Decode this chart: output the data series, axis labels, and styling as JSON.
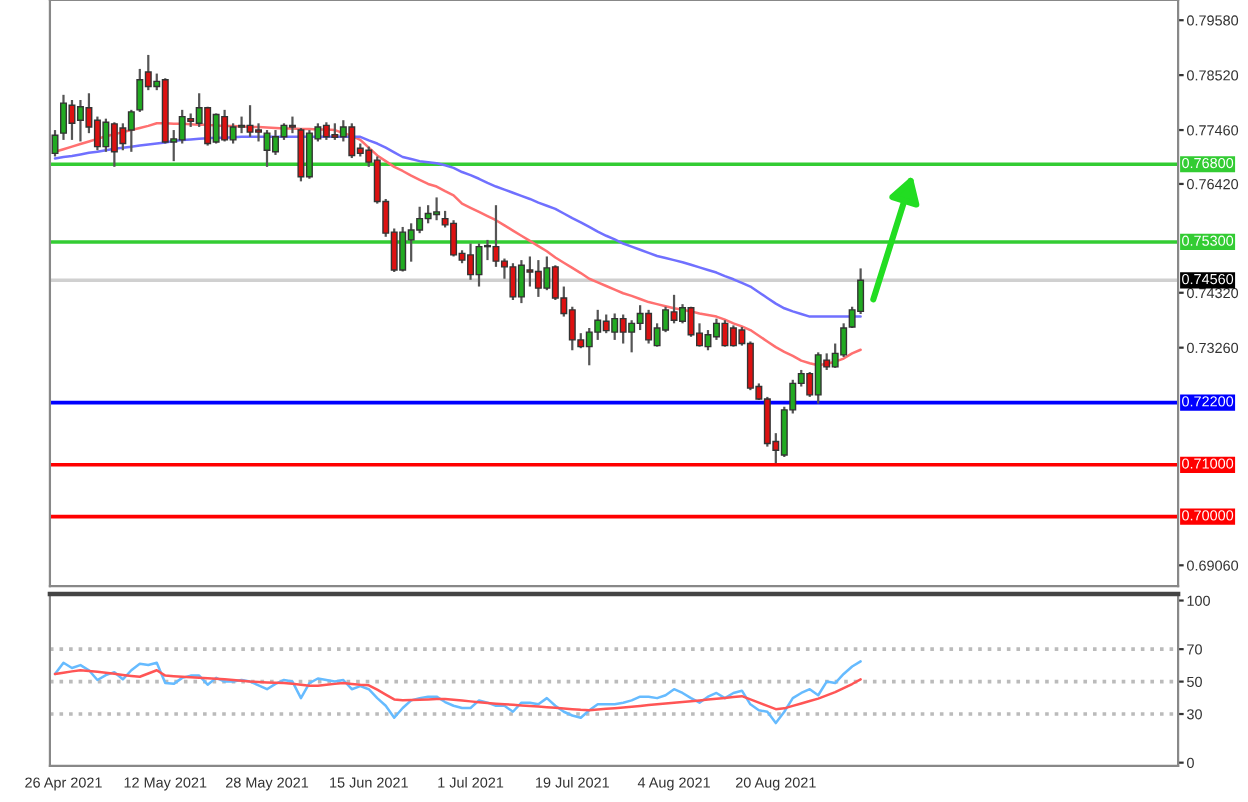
{
  "chart_data": [
    {
      "type": "candlestick",
      "tick_labels": "y",
      "categories": [
        null,
        null,
        null,
        null,
        null,
        null,
        null,
        null,
        null,
        null,
        null,
        null,
        null,
        null,
        null,
        null,
        null,
        null,
        null,
        null,
        null,
        null,
        null,
        null,
        null,
        null,
        null,
        null,
        null,
        null,
        null,
        null,
        null,
        null,
        null,
        null,
        null,
        null,
        null,
        null,
        null,
        null,
        null,
        null,
        null,
        null,
        null,
        null,
        null,
        null,
        null,
        null,
        null,
        null,
        null,
        null,
        null,
        null,
        null,
        null,
        null,
        null,
        null,
        null,
        null,
        null,
        null,
        null,
        null,
        null,
        null,
        null,
        null,
        null,
        null,
        null,
        null,
        null,
        null,
        null,
        null,
        null,
        null,
        null,
        null,
        null,
        null,
        null,
        null,
        null,
        null,
        null,
        null,
        null,
        null,
        null
      ],
      "ohlc": [
        [
          0.7701,
          0.7746,
          0.7695,
          0.7736
        ],
        [
          0.774,
          0.7814,
          0.7727,
          0.7798
        ],
        [
          0.7794,
          0.7804,
          0.7727,
          0.7759
        ],
        [
          0.7765,
          0.7804,
          0.7724,
          0.7791
        ],
        [
          0.7789,
          0.7817,
          0.774,
          0.7752
        ],
        [
          0.7765,
          0.7772,
          0.7707,
          0.7714
        ],
        [
          0.7714,
          0.7768,
          0.7704,
          0.7761
        ],
        [
          0.7758,
          0.7761,
          0.7675,
          0.7704
        ],
        [
          0.775,
          0.7759,
          0.7707,
          0.772
        ],
        [
          0.7746,
          0.7785,
          0.7704,
          0.7781
        ],
        [
          0.7785,
          0.7864,
          0.7781,
          0.7843
        ],
        [
          0.7858,
          0.7891,
          0.7823,
          0.783
        ],
        [
          0.783,
          0.7855,
          0.7823,
          0.784
        ],
        [
          0.7843,
          0.7846,
          0.772,
          0.7723
        ],
        [
          0.7723,
          0.7746,
          0.7686,
          0.7729
        ],
        [
          0.7727,
          0.7785,
          0.772,
          0.7772
        ],
        [
          0.7768,
          0.7778,
          0.7752,
          0.7763
        ],
        [
          0.7759,
          0.7817,
          0.7752,
          0.7789
        ],
        [
          0.7789,
          0.7791,
          0.7716,
          0.772
        ],
        [
          0.7723,
          0.7778,
          0.772,
          0.7776
        ],
        [
          0.7772,
          0.7785,
          0.7724,
          0.7727
        ],
        [
          0.7727,
          0.7759,
          0.772,
          0.7752
        ],
        [
          0.7752,
          0.7772,
          0.774,
          0.7755
        ],
        [
          0.7755,
          0.7794,
          0.7733,
          0.7742
        ],
        [
          0.7746,
          0.7759,
          0.7724,
          0.7742
        ],
        [
          0.7707,
          0.7746,
          0.7675,
          0.774
        ],
        [
          0.7704,
          0.7746,
          0.7698,
          0.7733
        ],
        [
          0.7733,
          0.7759,
          0.7727,
          0.7755
        ],
        [
          0.7755,
          0.7772,
          0.774,
          0.7752
        ],
        [
          0.7746,
          0.775,
          0.7647,
          0.7656
        ],
        [
          0.7656,
          0.7746,
          0.7652,
          0.774
        ],
        [
          0.7729,
          0.7759,
          0.7724,
          0.7752
        ],
        [
          0.7755,
          0.7761,
          0.7727,
          0.7733
        ],
        [
          0.7737,
          0.7759,
          0.7727,
          0.7732
        ],
        [
          0.7733,
          0.7765,
          0.7724,
          0.7752
        ],
        [
          0.7752,
          0.7759,
          0.7692,
          0.7697
        ],
        [
          0.7711,
          0.772,
          0.7695,
          0.7701
        ],
        [
          0.7707,
          0.7714,
          0.7675,
          0.7684
        ],
        [
          0.7688,
          0.7695,
          0.7604,
          0.7608
        ],
        [
          0.7608,
          0.7613,
          0.754,
          0.7547
        ],
        [
          0.7549,
          0.7556,
          0.7472,
          0.7476
        ],
        [
          0.7476,
          0.7559,
          0.7473,
          0.7549
        ],
        [
          0.7534,
          0.7566,
          0.7492,
          0.7553
        ],
        [
          0.7553,
          0.7598,
          0.7547,
          0.7575
        ],
        [
          0.7575,
          0.7601,
          0.7566,
          0.7585
        ],
        [
          0.7583,
          0.7616,
          0.7572,
          0.7588
        ],
        [
          0.7575,
          0.759,
          0.7558,
          0.7563
        ],
        [
          0.7566,
          0.7572,
          0.7502,
          0.7505
        ],
        [
          0.7508,
          0.7514,
          0.7489,
          0.7495
        ],
        [
          0.7505,
          0.7527,
          0.7457,
          0.7467
        ],
        [
          0.7467,
          0.7527,
          0.7444,
          0.7521
        ],
        [
          0.7523,
          0.7534,
          0.7495,
          0.7521
        ],
        [
          0.7521,
          0.7601,
          0.7482,
          0.7493
        ],
        [
          0.7493,
          0.7498,
          0.7459,
          0.7482
        ],
        [
          0.7482,
          0.7489,
          0.7418,
          0.7424
        ],
        [
          0.7424,
          0.7495,
          0.7412,
          0.7485
        ],
        [
          0.7476,
          0.7502,
          0.7444,
          0.7472
        ],
        [
          0.7473,
          0.7495,
          0.7424,
          0.7441
        ],
        [
          0.7441,
          0.7502,
          0.7437,
          0.748
        ],
        [
          0.7482,
          0.7485,
          0.7418,
          0.7422
        ],
        [
          0.7422,
          0.7444,
          0.7386,
          0.7392
        ],
        [
          0.7399,
          0.7405,
          0.7321,
          0.7341
        ],
        [
          0.7341,
          0.7354,
          0.7325,
          0.7328
        ],
        [
          0.7328,
          0.7364,
          0.7292,
          0.7356
        ],
        [
          0.7356,
          0.7399,
          0.7341,
          0.7379
        ],
        [
          0.7377,
          0.739,
          0.7354,
          0.7359
        ],
        [
          0.7356,
          0.7392,
          0.7341,
          0.7382
        ],
        [
          0.7382,
          0.739,
          0.7334,
          0.7356
        ],
        [
          0.7356,
          0.7379,
          0.7317,
          0.7373
        ],
        [
          0.7373,
          0.7408,
          0.736,
          0.7392
        ],
        [
          0.7392,
          0.7399,
          0.7334,
          0.7341
        ],
        [
          0.733,
          0.7373,
          0.7328,
          0.7364
        ],
        [
          0.736,
          0.7405,
          0.7356,
          0.7399
        ],
        [
          0.7395,
          0.7428,
          0.7373,
          0.7379
        ],
        [
          0.7377,
          0.741,
          0.7373,
          0.7403
        ],
        [
          0.7403,
          0.7405,
          0.7347,
          0.7351
        ],
        [
          0.7354,
          0.7373,
          0.7328,
          0.733
        ],
        [
          0.7328,
          0.736,
          0.7321,
          0.7351
        ],
        [
          0.7347,
          0.7382,
          0.7341,
          0.7373
        ],
        [
          0.7373,
          0.7379,
          0.7328,
          0.733
        ],
        [
          0.7364,
          0.7369,
          0.7328,
          0.733
        ],
        [
          0.736,
          0.7366,
          0.733,
          0.7334
        ],
        [
          0.7334,
          0.7338,
          0.7244,
          0.7248
        ],
        [
          0.7251,
          0.7257,
          0.7225,
          0.7227
        ],
        [
          0.7227,
          0.7231,
          0.7135,
          0.7141
        ],
        [
          0.7145,
          0.7161,
          0.7103,
          0.7128
        ],
        [
          0.7119,
          0.7212,
          0.7115,
          0.7206
        ],
        [
          0.7206,
          0.7264,
          0.7199,
          0.7257
        ],
        [
          0.7257,
          0.7283,
          0.7251,
          0.7276
        ],
        [
          0.7276,
          0.7279,
          0.7231,
          0.7235
        ],
        [
          0.7235,
          0.7317,
          0.7218,
          0.7312
        ],
        [
          0.7302,
          0.7315,
          0.7283,
          0.7289
        ],
        [
          0.7289,
          0.7334,
          0.7287,
          0.7315
        ],
        [
          0.7312,
          0.7373,
          0.7308,
          0.7364
        ],
        [
          0.7366,
          0.7405,
          0.7364,
          0.7399
        ],
        [
          0.7396,
          0.7479,
          0.7391,
          0.7456
        ]
      ],
      "series": [
        {
          "type": "line",
          "color": "#ff7070",
          "values": [
            0.7704,
            0.7709,
            0.7714,
            0.7719,
            0.7724,
            0.7729,
            0.7734,
            0.7738,
            0.7742,
            0.7746,
            0.775,
            0.7754,
            0.7759,
            0.7759,
            0.7758,
            0.7758,
            0.7757,
            0.7756,
            0.7756,
            0.7755,
            0.7754,
            0.7754,
            0.7753,
            0.7752,
            0.7752,
            0.7751,
            0.775,
            0.7749,
            0.7749,
            0.7748,
            0.7748,
            0.7747,
            0.7747,
            0.7746,
            0.774,
            0.7735,
            0.7727,
            0.7712,
            0.7697,
            0.7686,
            0.7675,
            0.7667,
            0.7658,
            0.765,
            0.7642,
            0.7637,
            0.7628,
            0.762,
            0.7604,
            0.7596,
            0.7588,
            0.758,
            0.7572,
            0.7562,
            0.7552,
            0.7542,
            0.7532,
            0.7522,
            0.7512,
            0.75,
            0.749,
            0.748,
            0.747,
            0.7459,
            0.7452,
            0.7445,
            0.7438,
            0.7431,
            0.7426,
            0.742,
            0.7414,
            0.741,
            0.7406,
            0.7402,
            0.7399,
            0.7396,
            0.7392,
            0.7389,
            0.7386,
            0.738,
            0.7373,
            0.7367,
            0.736,
            0.7349,
            0.7338,
            0.7327,
            0.7318,
            0.731,
            0.7301,
            0.7296,
            0.7292,
            0.7295,
            0.7299,
            0.7305,
            0.7315,
            0.7322
          ]
        },
        {
          "type": "line",
          "color": "#7070ff",
          "values": [
            0.7691,
            0.7694,
            0.7696,
            0.7699,
            0.7702,
            0.7704,
            0.7707,
            0.771,
            0.7712,
            0.7714,
            0.7716,
            0.7718,
            0.772,
            0.7722,
            0.7725,
            0.7727,
            0.7728,
            0.7729,
            0.773,
            0.7731,
            0.7731,
            0.7732,
            0.7733,
            0.7733,
            0.7733,
            0.7733,
            0.7733,
            0.7733,
            0.7733,
            0.7733,
            0.7733,
            0.7733,
            0.7733,
            0.7733,
            0.7733,
            0.7733,
            0.7733,
            0.7726,
            0.772,
            0.7712,
            0.7703,
            0.7694,
            0.769,
            0.7686,
            0.7684,
            0.7682,
            0.7678,
            0.7673,
            0.7665,
            0.7659,
            0.7652,
            0.7644,
            0.7637,
            0.7631,
            0.7625,
            0.7619,
            0.7613,
            0.7606,
            0.76,
            0.7594,
            0.7585,
            0.7576,
            0.7568,
            0.7559,
            0.755,
            0.7542,
            0.7535,
            0.7527,
            0.7521,
            0.7515,
            0.7509,
            0.7503,
            0.7499,
            0.7495,
            0.7491,
            0.7486,
            0.7481,
            0.7476,
            0.7471,
            0.7464,
            0.7458,
            0.7451,
            0.7444,
            0.7433,
            0.7422,
            0.7411,
            0.7402,
            0.7396,
            0.7391,
            0.7386,
            0.7386,
            0.7386,
            0.7386,
            0.7386,
            0.7386,
            0.7386
          ]
        }
      ],
      "ylim": [
        0.6866,
        0.7997
      ],
      "yticks": [
        {
          "value": 0.7958,
          "label": "0.79580"
        },
        {
          "value": 0.7852,
          "label": "0.78520"
        },
        {
          "value": 0.7746,
          "label": "0.77460"
        },
        {
          "value": 0.7642,
          "label": "0.76420"
        },
        {
          "value": 0.7432,
          "label": "0.74320"
        },
        {
          "value": 0.7326,
          "label": "0.73260"
        },
        {
          "value": 0.6906,
          "label": "0.69060"
        }
      ],
      "ref_lines": [
        {
          "axis": "y",
          "value": 0.768,
          "label": "0.76800",
          "color": "#33cc33"
        },
        {
          "axis": "y",
          "value": 0.753,
          "label": "0.75300",
          "color": "#33cc33"
        },
        {
          "axis": "y",
          "value": 0.7456,
          "label": "0.74560",
          "color": "#d0d0d0"
        },
        {
          "axis": "y",
          "value": 0.722,
          "label": "0.72200",
          "color": "#0000ff"
        },
        {
          "axis": "y",
          "value": 0.71,
          "label": "0.71000",
          "color": "#ff0000"
        },
        {
          "axis": "y",
          "value": 0.7,
          "label": "0.70000",
          "color": "#ff0000"
        }
      ]
    },
    {
      "type": "line",
      "categories": [
        null,
        "26 Apr 2021",
        null,
        null,
        null,
        null,
        null,
        null,
        null,
        null,
        null,
        null,
        null,
        "12 May 2021",
        null,
        null,
        null,
        null,
        null,
        null,
        null,
        null,
        null,
        null,
        null,
        "28 May 2021",
        null,
        null,
        null,
        null,
        null,
        null,
        null,
        null,
        null,
        null,
        null,
        "15 Jun 2021",
        null,
        null,
        null,
        null,
        null,
        null,
        null,
        null,
        null,
        null,
        null,
        "1 Jul 2021",
        null,
        null,
        null,
        null,
        null,
        null,
        null,
        null,
        null,
        null,
        null,
        "19 Jul 2021",
        null,
        null,
        null,
        null,
        null,
        null,
        null,
        null,
        null,
        null,
        null,
        "4 Aug 2021",
        null,
        null,
        null,
        null,
        null,
        null,
        null,
        null,
        null,
        null,
        null,
        "20 Aug 2021",
        null,
        null,
        null,
        null,
        null,
        null,
        null,
        null,
        null,
        null
      ],
      "series": [
        {
          "color": "#66bbff",
          "values": [
            54.7,
            61.6,
            58.4,
            60.2,
            57,
            51,
            54,
            55.8,
            51.4,
            57,
            61,
            60.2,
            61.6,
            49.1,
            48.6,
            52.3,
            53.7,
            53.7,
            48.1,
            52.3,
            50,
            50,
            51,
            50,
            47.7,
            45.3,
            48.6,
            51,
            50,
            39.8,
            49.1,
            51.9,
            51,
            50,
            51,
            45.3,
            47.2,
            45.3,
            39.8,
            35.1,
            27.7,
            33.7,
            38.4,
            39.8,
            40.7,
            40.7,
            37.4,
            35.1,
            33.7,
            33.7,
            38.4,
            37,
            35.1,
            35.1,
            31.4,
            37,
            37,
            36,
            39.8,
            35.1,
            31.4,
            29.1,
            27.7,
            32.3,
            36,
            36,
            36,
            37,
            38.4,
            40.7,
            40.7,
            39.8,
            41.6,
            45.3,
            43,
            39.8,
            37,
            40.7,
            43,
            39.8,
            43,
            44.4,
            36,
            32.3,
            31.4,
            24.4,
            31.4,
            39.8,
            43,
            45.3,
            41.6,
            50,
            49.1,
            54.7,
            59.3,
            62.5
          ]
        },
        {
          "color": "#ff5555",
          "values": [
            54.7,
            55.5,
            56.3,
            57,
            56.5,
            56,
            55.4,
            54.8,
            54.1,
            53.5,
            53,
            55,
            57,
            53.7,
            53.3,
            53,
            52.7,
            52.4,
            52,
            51.7,
            51.4,
            51,
            50.5,
            50,
            49.8,
            49.5,
            49.3,
            49.1,
            48.6,
            48,
            47.5,
            47.5,
            48,
            48.6,
            49.1,
            48.5,
            48,
            47.7,
            45,
            42,
            39,
            38.5,
            38.6,
            38.8,
            39,
            39.2,
            39.2,
            38.8,
            38.3,
            37.8,
            37.3,
            36.8,
            36.4,
            36,
            35.7,
            35.3,
            35,
            34.6,
            34.2,
            33.8,
            33.4,
            33,
            32.6,
            32.4,
            32.8,
            33.2,
            33.6,
            34,
            34.5,
            35,
            35.5,
            36,
            36.5,
            37,
            37.4,
            37.9,
            38.4,
            38.9,
            39.4,
            39.9,
            40.5,
            41,
            39,
            37,
            35,
            33,
            33.5,
            35,
            36.5,
            38,
            39.5,
            41.5,
            43.5,
            46,
            48.5,
            51.4
          ]
        }
      ],
      "ylim": [
        -2,
        104
      ],
      "yticks": [
        0,
        30,
        50,
        70,
        100
      ],
      "ref_lines": [
        {
          "axis": "y",
          "value": 30,
          "color": "#bbbbbb",
          "line_style": "dotted"
        },
        {
          "axis": "y",
          "value": 50,
          "color": "#bbbbbb",
          "line_style": "dotted"
        },
        {
          "axis": "y",
          "value": 70,
          "color": "#bbbbbb",
          "line_style": "dotted"
        }
      ]
    }
  ]
}
